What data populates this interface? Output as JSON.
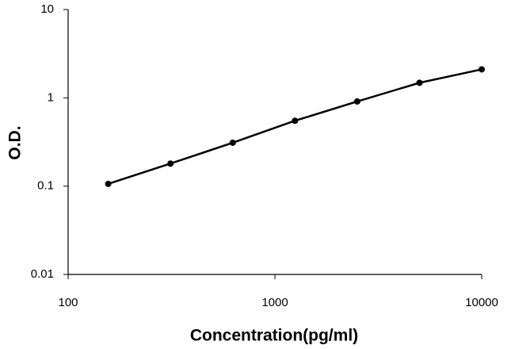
{
  "chart_data": {
    "type": "line",
    "x_label": "Concentration(pg/ml)",
    "y_label": "O.D.",
    "x": [
      156.25,
      312.5,
      625,
      1250,
      2500,
      5000,
      10000
    ],
    "series": [
      {
        "values": [
          0.106,
          0.18,
          0.31,
          0.55,
          0.91,
          1.48,
          2.1
        ],
        "color": "#000000"
      }
    ],
    "xlim": [
      100,
      10000
    ],
    "xticks": [
      100,
      1000,
      10000
    ],
    "ylim": [
      0.01,
      10
    ],
    "yticks": [
      0.01,
      0.1,
      1,
      10
    ],
    "x_scale": "log",
    "y_scale": "log",
    "grid": false
  }
}
